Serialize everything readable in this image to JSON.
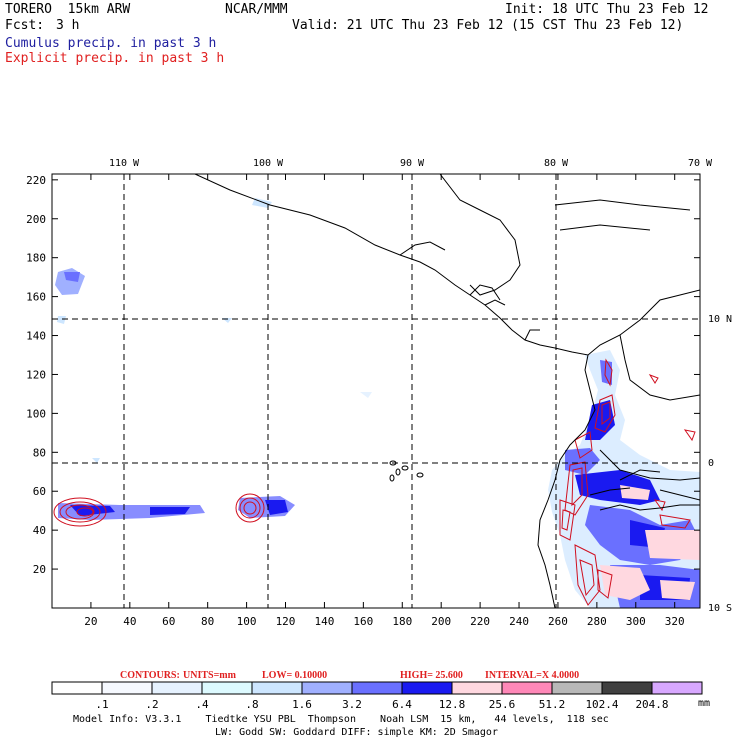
{
  "header": {
    "model": "TORERO  15km ARW",
    "org": "NCAR/MMM",
    "init": "Init: 18 UTC Thu 23 Feb 12",
    "fcst_label": "Fcst:",
    "fcst_value": "3 h",
    "valid": "Valid: 21 UTC Thu 23 Feb 12 (15 CST Thu 23 Feb 12)",
    "legend_cumulus": "Cumulus precip. in past 3 h",
    "legend_explicit": "Explicit precip. in past 3 h"
  },
  "colors": {
    "cumulus_text": "#2020a0",
    "explicit_text": "#e02020",
    "contour": "#d01020",
    "gridline": "#000000"
  },
  "map": {
    "lon_labels": [
      "110 W",
      "100 W",
      "90 W",
      "80 W",
      "70 W"
    ],
    "lat_labels": [
      "10 N",
      "0",
      "10 S"
    ],
    "x_ticks": [
      "20",
      "40",
      "60",
      "80",
      "100",
      "120",
      "140",
      "160",
      "180",
      "200",
      "220",
      "240",
      "260",
      "280",
      "300",
      "320"
    ],
    "y_ticks": [
      "20",
      "40",
      "60",
      "80",
      "100",
      "120",
      "140",
      "160",
      "180",
      "200",
      "220"
    ]
  },
  "contour_info": {
    "contours": "CONTOURS:",
    "units": "UNITS=mm",
    "low": "LOW= 0.10000",
    "high": "HIGH=  25.600",
    "interval": "INTERVAL=X  4.0000"
  },
  "colorbar": {
    "levels": [
      ".1",
      ".2",
      ".4",
      ".8",
      "1.6",
      "3.2",
      "6.4",
      "12.8",
      "25.6",
      "51.2",
      "102.4",
      "204.8"
    ],
    "units": "mm",
    "fill_colors": [
      "#ffffff",
      "#f6f9ff",
      "#e6f2ff",
      "#ddfaff",
      "#cde6ff",
      "#a0b0ff",
      "#6a70ff",
      "#1a1af0",
      "#ffd8e0",
      "#ff88b8",
      "#b8b8b8",
      "#404040",
      "#d8a8ff"
    ]
  },
  "footer": {
    "line1": "Model Info: V3.3.1    Tiedtke YSU PBL  Thompson    Noah LSM  15 km,   44 levels,  118 sec",
    "line2": "LW: Godd SW: Goddard DIFF: simple KM: 2D Smagor"
  }
}
